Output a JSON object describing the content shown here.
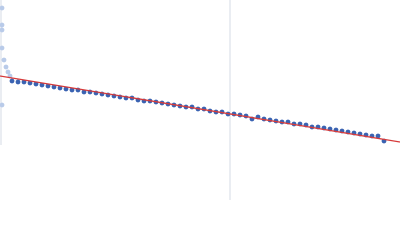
{
  "chart_data": {
    "type": "scatter",
    "xlim": [
      0,
      400
    ],
    "ylim": [
      0,
      200
    ],
    "series": [
      {
        "color": "#b9cbe9",
        "x": [
          2,
          2,
          2,
          2,
          4,
          6,
          8,
          2,
          10
        ],
        "values": [
          192,
          175,
          170,
          152,
          140,
          133,
          128,
          95,
          124
        ]
      },
      {
        "color": "#3a63b2",
        "x": [
          12,
          18,
          24,
          30,
          36,
          42,
          48,
          54,
          60,
          66,
          72,
          78,
          84,
          90,
          96,
          102,
          108,
          114,
          120,
          126,
          132,
          138,
          144,
          150,
          156,
          162,
          168,
          174,
          180,
          186,
          192,
          198,
          204,
          210,
          216,
          222,
          228,
          234,
          240,
          246,
          252,
          258,
          264,
          270,
          276,
          282,
          288,
          294,
          300,
          306,
          312,
          318,
          324,
          330,
          336,
          342,
          348,
          354,
          360,
          366,
          372,
          378,
          384
        ],
        "values": [
          119,
          118,
          118,
          117,
          116,
          115,
          114,
          113,
          112,
          111,
          110,
          110,
          108,
          108,
          107,
          106,
          105,
          104,
          103,
          102,
          102,
          100,
          99,
          99,
          98,
          97,
          96,
          95,
          94,
          93,
          93,
          91,
          91,
          89,
          88,
          88,
          86,
          86,
          85,
          84,
          81,
          83,
          81,
          80,
          79,
          78,
          78,
          76,
          76,
          75,
          73,
          73,
          72,
          71,
          70,
          69,
          68,
          67,
          66,
          65,
          64,
          64,
          59
        ]
      }
    ],
    "fit": {
      "color": "#d63a3a",
      "x": [
        0,
        400
      ],
      "values": [
        124,
        58
      ]
    }
  }
}
